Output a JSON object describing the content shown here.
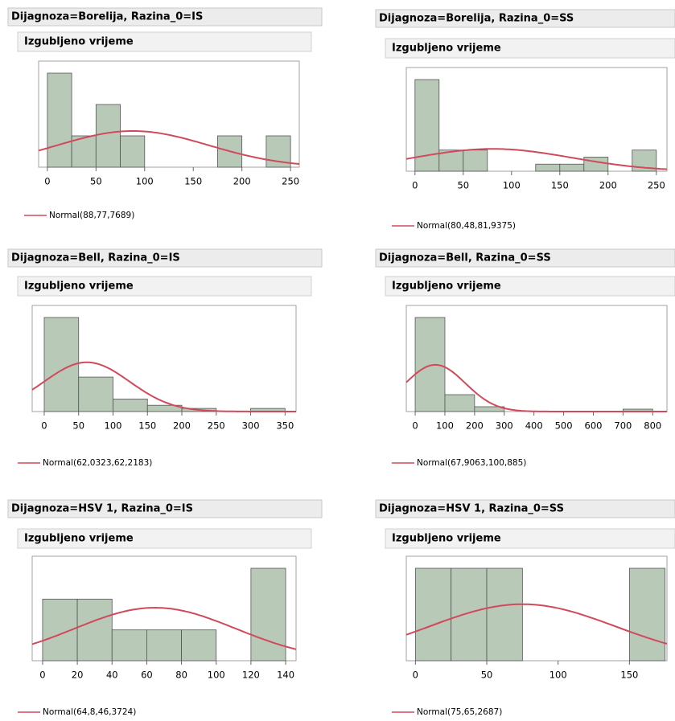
{
  "chart_data": [
    {
      "type": "histogram",
      "title": "Dijagnoza=Borelija, Razina_0=IS",
      "subtitle": "Izgubljeno vrijeme",
      "bins": [
        0,
        25,
        50,
        75,
        100,
        125,
        150,
        175,
        200,
        225,
        250
      ],
      "counts": [
        3,
        1,
        2,
        1,
        0,
        0,
        0,
        1,
        0,
        1
      ],
      "color": "#b8c9b7",
      "xlim": [
        -9,
        259
      ],
      "xticks": [
        0,
        50,
        100,
        150,
        200,
        250
      ],
      "series": [
        {
          "name": "Normal(88,77,7689)",
          "color": "#d04a5c",
          "mean": 88,
          "sd": 77.7689
        }
      ]
    },
    {
      "type": "histogram",
      "title": "Dijagnoza=Borelija, Razina_0=SS",
      "subtitle": "Izgubljeno vrijeme",
      "bins": [
        0,
        25,
        50,
        75,
        100,
        125,
        150,
        175,
        200,
        225,
        250
      ],
      "counts": [
        13,
        3,
        3,
        0,
        0,
        1,
        1,
        2,
        0,
        3
      ],
      "color": "#b8c9b7",
      "xlim": [
        -9,
        261
      ],
      "xticks": [
        0,
        50,
        100,
        150,
        200,
        250
      ],
      "series": [
        {
          "name": "Normal(80,48,81,9375)",
          "color": "#d04a5c",
          "mean": 80.48,
          "sd": 81.9375
        }
      ]
    },
    {
      "type": "histogram",
      "title": "Dijagnoza=Bell, Razina_0=IS",
      "subtitle": "Izgubljeno vrijeme",
      "bins": [
        0,
        50,
        100,
        150,
        200,
        250,
        300,
        350
      ],
      "counts": [
        30,
        11,
        4,
        2,
        1,
        0,
        1
      ],
      "color": "#b8c9b7",
      "xlim": [
        -17.5,
        366
      ],
      "xticks": [
        0,
        50,
        100,
        150,
        200,
        250,
        300,
        350
      ],
      "series": [
        {
          "name": "Normal(62,0323,62,2183)",
          "color": "#d04a5c",
          "mean": 62.0323,
          "sd": 62.2183
        }
      ]
    },
    {
      "type": "histogram",
      "title": "Dijagnoza=Bell, Razina_0=SS",
      "subtitle": "Izgubljeno vrijeme",
      "bins": [
        0,
        100,
        200,
        300,
        400,
        500,
        600,
        700,
        800
      ],
      "counts": [
        39,
        7,
        2,
        0,
        0,
        0,
        0,
        1
      ],
      "color": "#b8c9b7",
      "xlim": [
        -30,
        848
      ],
      "xticks": [
        0,
        100,
        200,
        300,
        400,
        500,
        600,
        700,
        800
      ],
      "series": [
        {
          "name": "Normal(67,9063,100,885)",
          "color": "#d04a5c",
          "mean": 67.9063,
          "sd": 100.885
        }
      ]
    },
    {
      "type": "histogram",
      "title": "Dijagnoza=HSV 1, Razina_0=IS",
      "subtitle": "Izgubljeno vrijeme",
      "bins": [
        0,
        20,
        40,
        60,
        80,
        100,
        120,
        140
      ],
      "counts": [
        2,
        2,
        1,
        1,
        1,
        0,
        3
      ],
      "color": "#b8c9b7",
      "xlim": [
        -6,
        146
      ],
      "xticks": [
        0,
        20,
        40,
        60,
        80,
        100,
        120,
        140
      ],
      "series": [
        {
          "name": "Normal(64,8,46,3724)",
          "color": "#d04a5c",
          "mean": 64.8,
          "sd": 46.3724
        }
      ]
    },
    {
      "type": "histogram",
      "title": "Dijagnoza=HSV 1, Razina_0=SS",
      "subtitle": "Izgubljeno vrijeme",
      "bins": [
        0,
        25,
        50,
        75,
        100,
        125,
        150,
        175
      ],
      "counts": [
        1,
        1,
        1,
        0,
        0,
        0,
        1
      ],
      "color": "#b8c9b7",
      "xlim": [
        -6.4,
        176.3
      ],
      "xticks": [
        0,
        50,
        100,
        150
      ],
      "series": [
        {
          "name": "Normal(75,65,2687)",
          "color": "#d04a5c",
          "mean": 75,
          "sd": 65.2687
        }
      ]
    }
  ]
}
